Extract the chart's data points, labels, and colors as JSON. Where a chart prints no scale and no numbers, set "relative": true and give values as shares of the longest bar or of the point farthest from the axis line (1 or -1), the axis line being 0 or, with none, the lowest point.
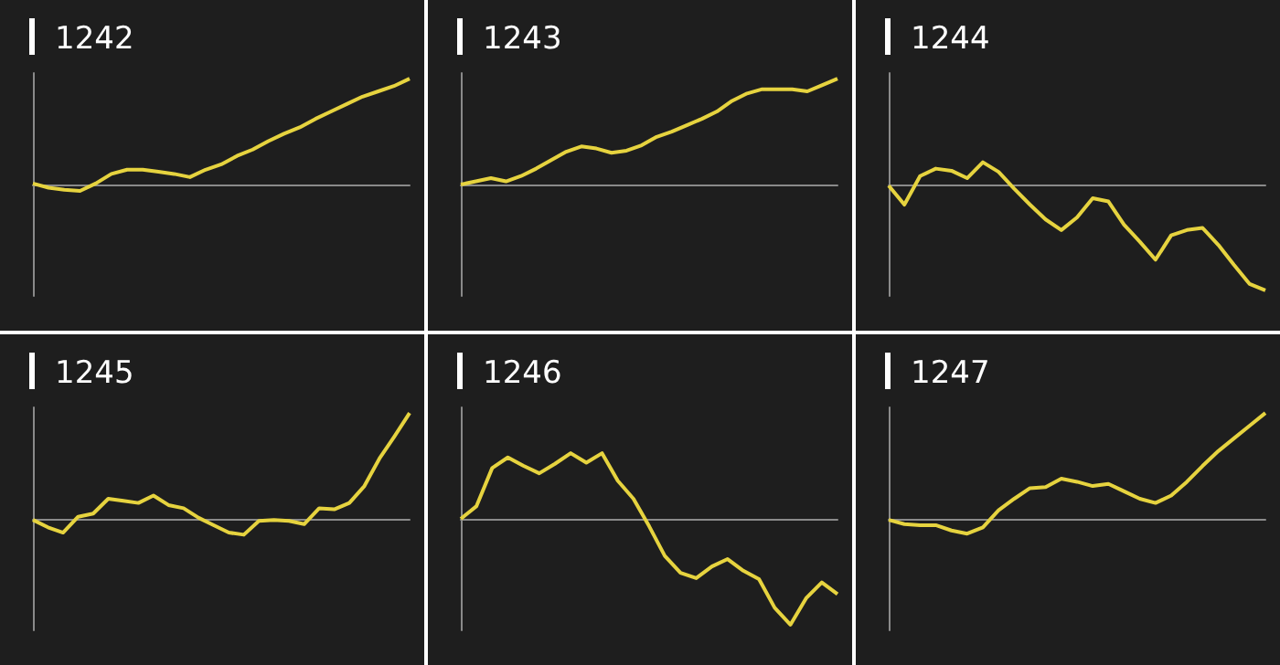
{
  "chart_data": [
    {
      "type": "line",
      "title": "1242",
      "relative": true,
      "tick_labels": false,
      "marker": "none",
      "categories": [
        null,
        null,
        null,
        null,
        null,
        null,
        null,
        null,
        null,
        null,
        null,
        null,
        null,
        null,
        null,
        null,
        null,
        null,
        null,
        null,
        null,
        null,
        null,
        null,
        null
      ],
      "series": [
        {
          "color": "#e6d33f",
          "values": [
            0.01,
            -0.03,
            -0.05,
            -0.06,
            0.01,
            0.1,
            0.14,
            0.14,
            0.12,
            0.1,
            0.07,
            0.14,
            0.19,
            0.27,
            0.33,
            0.41,
            0.48,
            0.54,
            0.62,
            0.69,
            0.76,
            0.83,
            0.88,
            0.93,
            1
          ]
        }
      ]
    },
    {
      "type": "line",
      "title": "1243",
      "relative": true,
      "tick_labels": false,
      "marker": "none",
      "categories": [
        null,
        null,
        null,
        null,
        null,
        null,
        null,
        null,
        null,
        null,
        null,
        null,
        null,
        null,
        null,
        null,
        null,
        null,
        null,
        null,
        null,
        null,
        null,
        null,
        null,
        null
      ],
      "series": [
        {
          "color": "#e6d33f",
          "values": [
            0,
            0.03,
            0.06,
            0.03,
            0.08,
            0.15,
            0.23,
            0.31,
            0.36,
            0.34,
            0.3,
            0.32,
            0.37,
            0.45,
            0.5,
            0.56,
            0.62,
            0.69,
            0.79,
            0.86,
            0.9,
            0.9,
            0.9,
            0.88,
            0.94,
            1
          ]
        }
      ]
    },
    {
      "type": "line",
      "title": "1244",
      "relative": true,
      "tick_labels": false,
      "marker": "none",
      "categories": [
        null,
        null,
        null,
        null,
        null,
        null,
        null,
        null,
        null,
        null,
        null,
        null,
        null,
        null,
        null,
        null,
        null,
        null,
        null,
        null,
        null,
        null,
        null,
        null,
        null
      ],
      "series": [
        {
          "color": "#e6d33f",
          "values": [
            -0.01,
            -0.19,
            0.08,
            0.15,
            0.13,
            0.06,
            0.21,
            0.12,
            -0.04,
            -0.19,
            -0.33,
            -0.43,
            -0.31,
            -0.13,
            -0.16,
            -0.38,
            -0.54,
            -0.71,
            -0.48,
            -0.43,
            -0.41,
            -0.57,
            -0.76,
            -0.94,
            -1
          ]
        }
      ]
    },
    {
      "type": "line",
      "title": "1245",
      "relative": true,
      "tick_labels": false,
      "marker": "none",
      "categories": [
        null,
        null,
        null,
        null,
        null,
        null,
        null,
        null,
        null,
        null,
        null,
        null,
        null,
        null,
        null,
        null,
        null,
        null,
        null,
        null,
        null,
        null,
        null,
        null,
        null,
        null
      ],
      "series": [
        {
          "color": "#e6d33f",
          "values": [
            -0.01,
            -0.08,
            -0.13,
            0.02,
            0.05,
            0.19,
            0.17,
            0.15,
            0.22,
            0.13,
            0.1,
            0.01,
            -0.06,
            -0.13,
            -0.15,
            -0.02,
            -0.01,
            -0.02,
            -0.05,
            0.1,
            0.09,
            0.15,
            0.31,
            0.57,
            0.78,
            1
          ]
        }
      ]
    },
    {
      "type": "line",
      "title": "1246",
      "relative": true,
      "tick_labels": false,
      "marker": "none",
      "categories": [
        null,
        null,
        null,
        null,
        null,
        null,
        null,
        null,
        null,
        null,
        null,
        null,
        null,
        null,
        null,
        null,
        null,
        null,
        null,
        null,
        null,
        null,
        null,
        null,
        null
      ],
      "series": [
        {
          "color": "#e6d33f",
          "values": [
            0,
            0.12,
            0.48,
            0.58,
            0.5,
            0.43,
            0.52,
            0.62,
            0.53,
            0.62,
            0.36,
            0.19,
            -0.07,
            -0.35,
            -0.51,
            -0.56,
            -0.45,
            -0.38,
            -0.49,
            -0.57,
            -0.84,
            -1,
            -0.75,
            -0.6,
            -0.71
          ]
        }
      ]
    },
    {
      "type": "line",
      "title": "1247",
      "relative": true,
      "tick_labels": false,
      "marker": "none",
      "categories": [
        null,
        null,
        null,
        null,
        null,
        null,
        null,
        null,
        null,
        null,
        null,
        null,
        null,
        null,
        null,
        null,
        null,
        null,
        null,
        null,
        null,
        null,
        null,
        null,
        null
      ],
      "series": [
        {
          "color": "#e6d33f",
          "values": [
            -0.01,
            -0.05,
            -0.06,
            -0.06,
            -0.11,
            -0.14,
            -0.08,
            0.08,
            0.19,
            0.29,
            0.3,
            0.38,
            0.35,
            0.31,
            0.33,
            0.26,
            0.19,
            0.15,
            0.22,
            0.35,
            0.5,
            0.64,
            0.76,
            0.88,
            1
          ]
        }
      ]
    }
  ]
}
